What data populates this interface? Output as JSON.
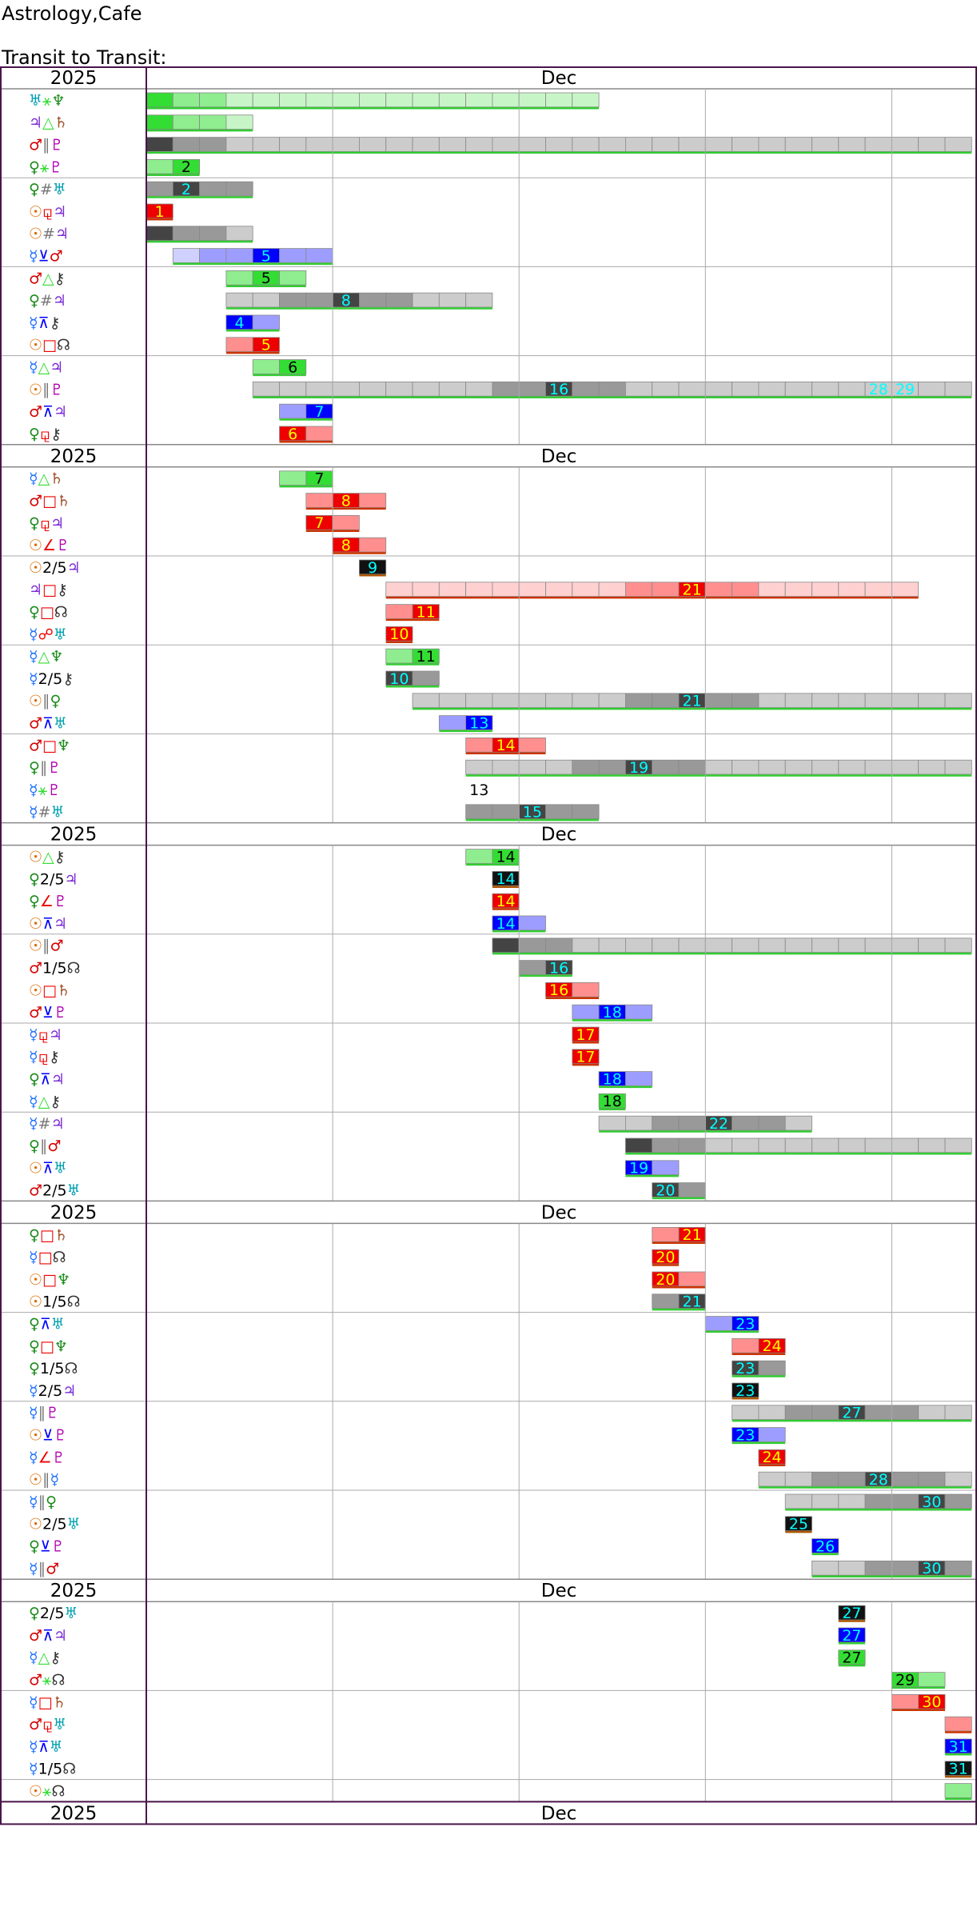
{
  "header": {
    "site_title": "Astrology,Cafe",
    "chart_title": "Transit to Transit:"
  },
  "colors": {
    "frame": "#4a154b",
    "grid": "#aaaaaa",
    "separator": "#888888",
    "green": "#33dd33",
    "red": "#ee0000",
    "blue": "#0000ff",
    "gray": "#777777",
    "black": "#111111",
    "label_cyan": "#00ffff",
    "label_yellow": "#ffff00",
    "planet_sun": "#d96a00",
    "planet_moon": "#888888",
    "planet_mercury": "#1e6fff",
    "planet_venus": "#1a8a1a",
    "planet_mars": "#d40000",
    "planet_jupiter": "#7a2ad4",
    "planet_saturn": "#a0522d",
    "planet_uranus": "#00a0b0",
    "planet_neptune": "#1a8a1a",
    "planet_pluto": "#b000b0",
    "planet_chiron": "#333333",
    "planet_node": "#333333"
  },
  "chart_data": {
    "type": "timeline",
    "year": "2025",
    "month": "Dec",
    "x_domain": [
      1,
      32
    ],
    "day_gridlines": [
      8,
      15,
      22,
      29
    ],
    "groups": [
      {
        "rows": [
          {
            "p1": "♅",
            "a": "⚹",
            "p2": "♆",
            "color": "green",
            "start": 1,
            "end": 18,
            "peak": 1,
            "peak_label": ""
          },
          {
            "p1": "♃",
            "a": "△",
            "p2": "♄",
            "color": "green",
            "start": 1,
            "end": 5,
            "peak": 1,
            "peak_label": ""
          },
          {
            "p1": "♂",
            "a": "∥",
            "p2": "♇",
            "color": "gray",
            "start": 1,
            "end": 32,
            "peak": 1,
            "peak_label": ""
          },
          {
            "p1": "♀",
            "a": "⚹",
            "p2": "♇",
            "color": "green",
            "start": 1,
            "end": 3,
            "peak": 2,
            "peak_label": "2"
          }
        ]
      },
      {
        "rows": [
          {
            "p1": "♀",
            "a": "#",
            "p2": "♅",
            "color": "gray",
            "start": 1,
            "end": 5,
            "peak": 2,
            "peak_label": "2"
          },
          {
            "p1": "☉",
            "a": "⚼",
            "p2": "♃",
            "color": "red",
            "start": 1,
            "end": 2,
            "peak": 1,
            "peak_label": "1"
          },
          {
            "p1": "☉",
            "a": "#",
            "p2": "♃",
            "color": "gray",
            "start": 1,
            "end": 5,
            "peak": 1,
            "peak_label": ""
          },
          {
            "p1": "☿",
            "a": "⊻",
            "p2": "♂",
            "color": "blue",
            "start": 2,
            "end": 8,
            "peak": 5,
            "peak_label": "5"
          }
        ]
      },
      {
        "rows": [
          {
            "p1": "♂",
            "a": "△",
            "p2": "⚷",
            "color": "green",
            "start": 4,
            "end": 7,
            "peak": 5,
            "peak_label": "5"
          },
          {
            "p1": "♀",
            "a": "#",
            "p2": "♃",
            "color": "gray",
            "start": 4,
            "end": 14,
            "peak": 8,
            "peak_label": "8"
          },
          {
            "p1": "☿",
            "a": "⊼",
            "p2": "⚷",
            "color": "blue",
            "start": 4,
            "end": 6,
            "peak": 4,
            "peak_label": "4"
          },
          {
            "p1": "☉",
            "a": "□",
            "p2": "☊",
            "color": "red",
            "start": 4,
            "end": 6,
            "peak": 5,
            "peak_label": "5"
          }
        ]
      },
      {
        "rows": [
          {
            "p1": "☿",
            "a": "△",
            "p2": "♃",
            "color": "green",
            "start": 5,
            "end": 7,
            "peak": 6,
            "peak_label": "6"
          },
          {
            "p1": "☉",
            "a": "∥",
            "p2": "♇",
            "color": "gray",
            "start": 5,
            "end": 32,
            "peak": 16,
            "peak_label": "16",
            "extra": [
              {
                "day": 28,
                "label": "28"
              },
              {
                "day": 29,
                "label": "29"
              }
            ]
          },
          {
            "p1": "♂",
            "a": "⊼",
            "p2": "♃",
            "color": "blue",
            "start": 6,
            "end": 8,
            "peak": 7,
            "peak_label": "7"
          },
          {
            "p1": "♀",
            "a": "⚼",
            "p2": "⚷",
            "color": "red",
            "start": 6,
            "end": 8,
            "peak": 6,
            "peak_label": "6"
          }
        ]
      },
      {
        "rows": [
          {
            "p1": "☿",
            "a": "△",
            "p2": "♄",
            "color": "green",
            "start": 6,
            "end": 8,
            "peak": 7,
            "peak_label": "7"
          },
          {
            "p1": "♂",
            "a": "□",
            "p2": "♄",
            "color": "red",
            "start": 7,
            "end": 10,
            "peak": 8,
            "peak_label": "8"
          },
          {
            "p1": "♀",
            "a": "⚼",
            "p2": "♃",
            "color": "red",
            "start": 7,
            "end": 9,
            "peak": 7,
            "peak_label": "7"
          },
          {
            "p1": "☉",
            "a": "∠",
            "p2": "♇",
            "color": "red",
            "start": 8,
            "end": 10,
            "peak": 8,
            "peak_label": "8"
          }
        ]
      },
      {
        "rows": [
          {
            "p1": "☉",
            "a": "2/5",
            "p2": "♃",
            "color": "black",
            "start": 9,
            "end": 10,
            "peak": 9,
            "peak_label": "9"
          },
          {
            "p1": "♃",
            "a": "□",
            "p2": "⚷",
            "color": "red",
            "start": 10,
            "end": 30,
            "peak": 21,
            "peak_label": "21"
          },
          {
            "p1": "♀",
            "a": "□",
            "p2": "☊",
            "color": "red",
            "start": 10,
            "end": 12,
            "peak": 11,
            "peak_label": "11"
          },
          {
            "p1": "☿",
            "a": "☍",
            "p2": "♅",
            "color": "red",
            "start": 10,
            "end": 11,
            "peak": 10,
            "peak_label": "10"
          }
        ]
      },
      {
        "rows": [
          {
            "p1": "☿",
            "a": "△",
            "p2": "♆",
            "color": "green",
            "start": 10,
            "end": 12,
            "peak": 11,
            "peak_label": "11"
          },
          {
            "p1": "☿",
            "a": "2/5",
            "p2": "⚷",
            "color": "gray",
            "start": 10,
            "end": 12,
            "peak": 10,
            "peak_label": "10"
          },
          {
            "p1": "☉",
            "a": "∥",
            "p2": "♀",
            "color": "gray",
            "start": 11,
            "end": 32,
            "peak": 21,
            "peak_label": "21"
          },
          {
            "p1": "♂",
            "a": "⊼",
            "p2": "♅",
            "color": "blue",
            "start": 12,
            "end": 14,
            "peak": 13,
            "peak_label": "13"
          }
        ]
      },
      {
        "rows": [
          {
            "p1": "♂",
            "a": "□",
            "p2": "♆",
            "color": "red",
            "start": 13,
            "end": 16,
            "peak": 14,
            "peak_label": "14"
          },
          {
            "p1": "♀",
            "a": "∥",
            "p2": "♇",
            "color": "gray",
            "start": 13,
            "end": 32,
            "peak": 19,
            "peak_label": "19"
          },
          {
            "p1": "☿",
            "a": "⚹",
            "p2": "♇",
            "color": "none",
            "start": 13,
            "end": 14,
            "peak": 13,
            "peak_label": "13"
          },
          {
            "p1": "☿",
            "a": "#",
            "p2": "♅",
            "color": "gray",
            "start": 13,
            "end": 18,
            "peak": 15,
            "peak_label": "15"
          }
        ]
      },
      {
        "rows": [
          {
            "p1": "☉",
            "a": "△",
            "p2": "⚷",
            "color": "green",
            "start": 13,
            "end": 15,
            "peak": 14,
            "peak_label": "14"
          },
          {
            "p1": "♀",
            "a": "2/5",
            "p2": "♃",
            "color": "black",
            "start": 14,
            "end": 15,
            "peak": 14,
            "peak_label": "14"
          },
          {
            "p1": "♀",
            "a": "∠",
            "p2": "♇",
            "color": "red",
            "start": 14,
            "end": 15,
            "peak": 14,
            "peak_label": "14"
          },
          {
            "p1": "☉",
            "a": "⊼",
            "p2": "♃",
            "color": "blue",
            "start": 14,
            "end": 16,
            "peak": 14,
            "peak_label": "14"
          }
        ]
      },
      {
        "rows": [
          {
            "p1": "☉",
            "a": "∥",
            "p2": "♂",
            "color": "gray",
            "start": 14,
            "end": 32,
            "peak": 14,
            "peak_label": ""
          },
          {
            "p1": "♂",
            "a": "1/5",
            "p2": "☊",
            "color": "gray",
            "start": 15,
            "end": 17,
            "peak": 16,
            "peak_label": "16"
          },
          {
            "p1": "☉",
            "a": "□",
            "p2": "♄",
            "color": "red",
            "start": 16,
            "end": 18,
            "peak": 16,
            "peak_label": "16"
          },
          {
            "p1": "♂",
            "a": "⊻",
            "p2": "♇",
            "color": "blue",
            "start": 17,
            "end": 20,
            "peak": 18,
            "peak_label": "18"
          }
        ]
      },
      {
        "rows": [
          {
            "p1": "☿",
            "a": "⚼",
            "p2": "♃",
            "color": "red",
            "start": 17,
            "end": 18,
            "peak": 17,
            "peak_label": "17"
          },
          {
            "p1": "☿",
            "a": "⚼",
            "p2": "⚷",
            "color": "red",
            "start": 17,
            "end": 18,
            "peak": 17,
            "peak_label": "17"
          },
          {
            "p1": "♀",
            "a": "⊼",
            "p2": "♃",
            "color": "blue",
            "start": 18,
            "end": 20,
            "peak": 18,
            "peak_label": "18"
          },
          {
            "p1": "☿",
            "a": "△",
            "p2": "⚷",
            "color": "green",
            "start": 18,
            "end": 19,
            "peak": 18,
            "peak_label": "18"
          }
        ]
      },
      {
        "rows": [
          {
            "p1": "☿",
            "a": "#",
            "p2": "♃",
            "color": "gray",
            "start": 18,
            "end": 26,
            "peak": 22,
            "peak_label": "22"
          },
          {
            "p1": "♀",
            "a": "∥",
            "p2": "♂",
            "color": "gray",
            "start": 19,
            "end": 32,
            "peak": 19,
            "peak_label": ""
          },
          {
            "p1": "☉",
            "a": "⊼",
            "p2": "♅",
            "color": "blue",
            "start": 19,
            "end": 21,
            "peak": 19,
            "peak_label": "19"
          },
          {
            "p1": "♂",
            "a": "2/5",
            "p2": "♅",
            "color": "gray",
            "start": 20,
            "end": 22,
            "peak": 20,
            "peak_label": "20"
          }
        ]
      },
      {
        "rows": [
          {
            "p1": "♀",
            "a": "□",
            "p2": "♄",
            "color": "red",
            "start": 20,
            "end": 22,
            "peak": 21,
            "peak_label": "21"
          },
          {
            "p1": "☿",
            "a": "□",
            "p2": "☊",
            "color": "red",
            "start": 20,
            "end": 21,
            "peak": 20,
            "peak_label": "20"
          },
          {
            "p1": "☉",
            "a": "□",
            "p2": "♆",
            "color": "red",
            "start": 20,
            "end": 22,
            "peak": 20,
            "peak_label": "20"
          },
          {
            "p1": "☉",
            "a": "1/5",
            "p2": "☊",
            "color": "gray",
            "start": 20,
            "end": 22,
            "peak": 21,
            "peak_label": "21"
          }
        ]
      },
      {
        "rows": [
          {
            "p1": "♀",
            "a": "⊼",
            "p2": "♅",
            "color": "blue",
            "start": 22,
            "end": 24,
            "peak": 23,
            "peak_label": "23"
          },
          {
            "p1": "♀",
            "a": "□",
            "p2": "♆",
            "color": "red",
            "start": 23,
            "end": 25,
            "peak": 24,
            "peak_label": "24"
          },
          {
            "p1": "♀",
            "a": "1/5",
            "p2": "☊",
            "color": "gray",
            "start": 23,
            "end": 25,
            "peak": 23,
            "peak_label": "23"
          },
          {
            "p1": "☿",
            "a": "2/5",
            "p2": "♃",
            "color": "black",
            "start": 23,
            "end": 24,
            "peak": 23,
            "peak_label": "23"
          }
        ]
      },
      {
        "rows": [
          {
            "p1": "☿",
            "a": "∥",
            "p2": "♇",
            "color": "gray",
            "start": 23,
            "end": 32,
            "peak": 27,
            "peak_label": "27"
          },
          {
            "p1": "☉",
            "a": "⊻",
            "p2": "♇",
            "color": "blue",
            "start": 23,
            "end": 25,
            "peak": 23,
            "peak_label": "23"
          },
          {
            "p1": "☿",
            "a": "∠",
            "p2": "♇",
            "color": "red",
            "start": 24,
            "end": 25,
            "peak": 24,
            "peak_label": "24"
          },
          {
            "p1": "☉",
            "a": "∥",
            "p2": "☿",
            "color": "gray",
            "start": 24,
            "end": 32,
            "peak": 28,
            "peak_label": "28"
          }
        ]
      },
      {
        "rows": [
          {
            "p1": "☿",
            "a": "∥",
            "p2": "♀",
            "color": "gray",
            "start": 25,
            "end": 32,
            "peak": 30,
            "peak_label": "30"
          },
          {
            "p1": "☉",
            "a": "2/5",
            "p2": "♅",
            "color": "black",
            "start": 25,
            "end": 26,
            "peak": 25,
            "peak_label": "25"
          },
          {
            "p1": "♀",
            "a": "⊻",
            "p2": "♇",
            "color": "blue",
            "start": 26,
            "end": 27,
            "peak": 26,
            "peak_label": "26"
          },
          {
            "p1": "☿",
            "a": "∥",
            "p2": "♂",
            "color": "gray",
            "start": 26,
            "end": 32,
            "peak": 30,
            "peak_label": "30"
          }
        ]
      },
      {
        "rows": [
          {
            "p1": "♀",
            "a": "2/5",
            "p2": "♅",
            "color": "black",
            "start": 27,
            "end": 28,
            "peak": 27,
            "peak_label": "27"
          },
          {
            "p1": "♂",
            "a": "⊼",
            "p2": "♃",
            "color": "blue",
            "start": 27,
            "end": 28,
            "peak": 27,
            "peak_label": "27"
          },
          {
            "p1": "☿",
            "a": "△",
            "p2": "⚷",
            "color": "green",
            "start": 27,
            "end": 28,
            "peak": 27,
            "peak_label": "27"
          },
          {
            "p1": "♂",
            "a": "⚹",
            "p2": "☊",
            "color": "green",
            "start": 29,
            "end": 31,
            "peak": 29,
            "peak_label": "29"
          }
        ]
      },
      {
        "rows": [
          {
            "p1": "☿",
            "a": "□",
            "p2": "♄",
            "color": "red",
            "start": 29,
            "end": 31,
            "peak": 30,
            "peak_label": "30"
          },
          {
            "p1": "♂",
            "a": "⚼",
            "p2": "♅",
            "color": "red",
            "start": 31,
            "end": 32,
            "peak": 32,
            "peak_label": ""
          },
          {
            "p1": "☿",
            "a": "⊼",
            "p2": "♅",
            "color": "blue",
            "start": 31,
            "end": 32,
            "peak": 31,
            "peak_label": "31"
          },
          {
            "p1": "☿",
            "a": "1/5",
            "p2": "☊",
            "color": "black",
            "start": 31,
            "end": 32,
            "peak": 31,
            "peak_label": "31"
          }
        ]
      },
      {
        "rows": [
          {
            "p1": "☉",
            "a": "⚹",
            "p2": "☊",
            "color": "green",
            "start": 31,
            "end": 32,
            "peak": 32,
            "peak_label": ""
          }
        ]
      }
    ]
  }
}
